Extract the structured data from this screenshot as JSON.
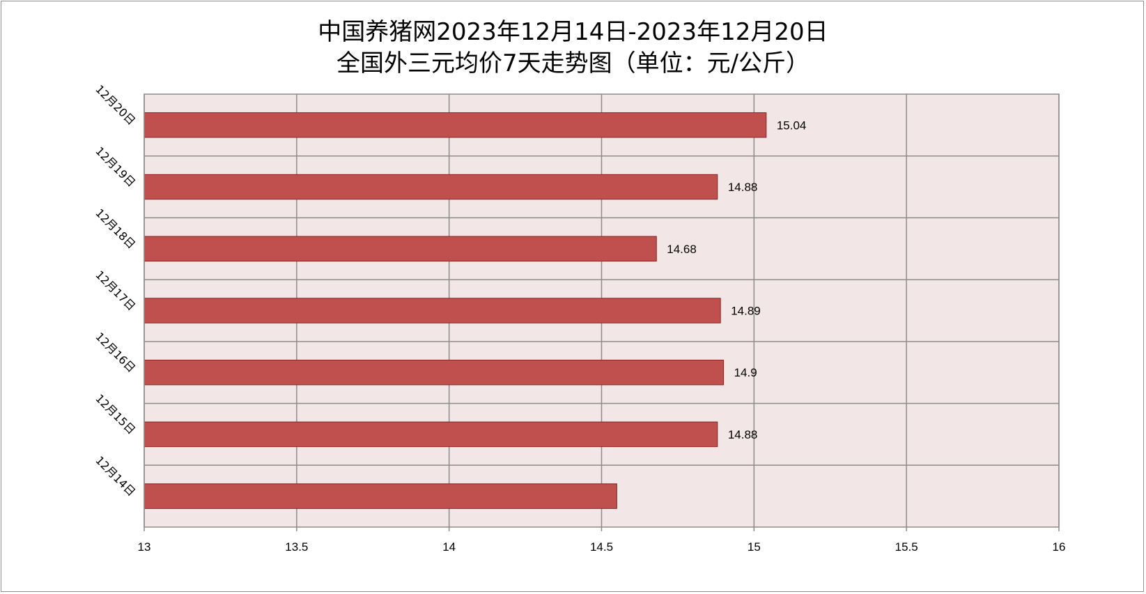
{
  "chart_data": {
    "type": "bar",
    "orientation": "horizontal",
    "title_line1": "中国养猪网2023年12月14日-2023年12月20日",
    "title_line2": "全国外三元均价7天走势图（单位：元/公斤）",
    "categories": [
      "12月14日",
      "12月15日",
      "12月16日",
      "12月17日",
      "12月18日",
      "12月19日",
      "12月20日"
    ],
    "values": [
      14.55,
      14.88,
      14.9,
      14.89,
      14.68,
      14.88,
      15.04
    ],
    "data_labels": [
      "",
      "14.88",
      "14.9",
      "14.89",
      "14.68",
      "14.88",
      "15.04"
    ],
    "xlim": [
      13,
      16
    ],
    "x_ticks": [
      "13",
      "13.5",
      "14",
      "14.5",
      "15",
      "15.5",
      "16"
    ],
    "grid": true,
    "colors": {
      "bar_fill": "#c0504d",
      "bar_edge": "#8b2423",
      "plot_bg": "#f2e6e6",
      "grid": "#8c8c8c"
    }
  }
}
